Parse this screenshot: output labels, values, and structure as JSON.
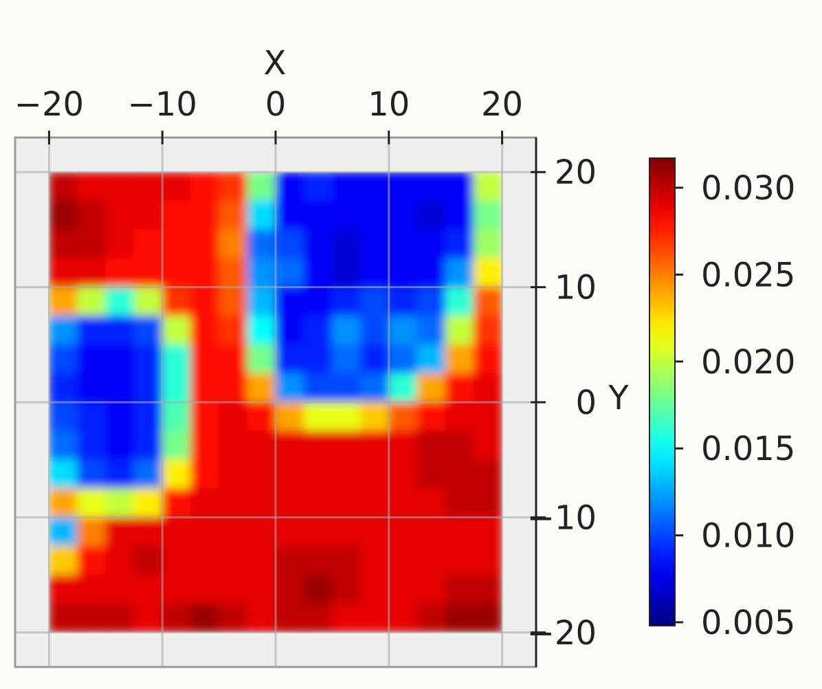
{
  "chart_data": {
    "type": "heatmap",
    "xlabel": "X",
    "ylabel": "Y",
    "colormap": "jet",
    "grid": true,
    "x": [
      -18.75,
      -16.25,
      -13.75,
      -11.25,
      -8.75,
      -6.25,
      -3.75,
      -1.25,
      1.25,
      3.75,
      6.25,
      8.75,
      11.25,
      13.75,
      16.25,
      18.75
    ],
    "y": [
      18.75,
      16.25,
      13.75,
      11.25,
      8.75,
      6.25,
      3.75,
      1.25,
      -1.25,
      -3.75,
      -6.25,
      -8.75,
      -11.25,
      -13.75,
      -16.25,
      -18.75
    ],
    "z": [
      [
        0.03,
        0.029,
        0.029,
        0.029,
        0.029,
        0.028,
        0.027,
        0.018,
        0.008,
        0.009,
        0.008,
        0.008,
        0.008,
        0.008,
        0.008,
        0.02
      ],
      [
        0.031,
        0.03,
        0.029,
        0.029,
        0.028,
        0.028,
        0.026,
        0.014,
        0.008,
        0.008,
        0.008,
        0.008,
        0.008,
        0.007,
        0.008,
        0.018
      ],
      [
        0.03,
        0.03,
        0.029,
        0.028,
        0.028,
        0.028,
        0.025,
        0.011,
        0.01,
        0.008,
        0.007,
        0.008,
        0.008,
        0.008,
        0.009,
        0.019
      ],
      [
        0.029,
        0.029,
        0.028,
        0.028,
        0.028,
        0.028,
        0.026,
        0.012,
        0.011,
        0.008,
        0.007,
        0.008,
        0.008,
        0.008,
        0.012,
        0.022
      ],
      [
        0.024,
        0.02,
        0.016,
        0.02,
        0.027,
        0.028,
        0.026,
        0.013,
        0.008,
        0.008,
        0.009,
        0.01,
        0.009,
        0.01,
        0.016,
        0.026
      ],
      [
        0.012,
        0.009,
        0.009,
        0.01,
        0.02,
        0.028,
        0.027,
        0.015,
        0.008,
        0.009,
        0.012,
        0.01,
        0.012,
        0.011,
        0.02,
        0.027
      ],
      [
        0.01,
        0.008,
        0.008,
        0.009,
        0.016,
        0.028,
        0.028,
        0.018,
        0.009,
        0.009,
        0.011,
        0.009,
        0.011,
        0.013,
        0.024,
        0.028
      ],
      [
        0.009,
        0.008,
        0.008,
        0.009,
        0.016,
        0.028,
        0.028,
        0.024,
        0.012,
        0.01,
        0.01,
        0.011,
        0.016,
        0.024,
        0.028,
        0.029
      ],
      [
        0.01,
        0.009,
        0.008,
        0.009,
        0.017,
        0.028,
        0.029,
        0.028,
        0.024,
        0.021,
        0.021,
        0.023,
        0.026,
        0.028,
        0.029,
        0.029
      ],
      [
        0.011,
        0.009,
        0.008,
        0.009,
        0.018,
        0.028,
        0.029,
        0.029,
        0.029,
        0.029,
        0.029,
        0.029,
        0.029,
        0.03,
        0.03,
        0.029
      ],
      [
        0.014,
        0.01,
        0.009,
        0.011,
        0.022,
        0.028,
        0.029,
        0.029,
        0.029,
        0.029,
        0.029,
        0.029,
        0.029,
        0.03,
        0.03,
        0.03
      ],
      [
        0.024,
        0.021,
        0.02,
        0.022,
        0.028,
        0.029,
        0.029,
        0.029,
        0.029,
        0.029,
        0.029,
        0.029,
        0.029,
        0.029,
        0.03,
        0.03
      ],
      [
        0.013,
        0.025,
        0.029,
        0.029,
        0.029,
        0.029,
        0.029,
        0.029,
        0.029,
        0.029,
        0.029,
        0.029,
        0.029,
        0.029,
        0.029,
        0.029
      ],
      [
        0.023,
        0.028,
        0.029,
        0.03,
        0.029,
        0.029,
        0.029,
        0.029,
        0.03,
        0.03,
        0.03,
        0.029,
        0.029,
        0.029,
        0.029,
        0.029
      ],
      [
        0.029,
        0.029,
        0.029,
        0.029,
        0.029,
        0.029,
        0.029,
        0.029,
        0.03,
        0.031,
        0.03,
        0.029,
        0.029,
        0.029,
        0.03,
        0.03
      ],
      [
        0.03,
        0.03,
        0.03,
        0.029,
        0.03,
        0.031,
        0.03,
        0.029,
        0.03,
        0.03,
        0.029,
        0.029,
        0.029,
        0.03,
        0.031,
        0.031
      ]
    ],
    "cell": 2.5,
    "xlim": [
      -23,
      23
    ],
    "ylim": [
      -23,
      23
    ],
    "xticks": [
      {
        "value": -20,
        "label": "−20"
      },
      {
        "value": -10,
        "label": "−10"
      },
      0,
      10,
      20
    ],
    "yticks": [
      {
        "value": -20,
        "label": "−20"
      },
      {
        "value": -10,
        "label": "−10"
      },
      0,
      10,
      20
    ],
    "clim": [
      0.0048,
      0.0317
    ],
    "cticks": [
      0.005,
      {
        "value": 0.01,
        "label": "0.010"
      },
      0.015,
      {
        "value": 0.02,
        "label": "0.020"
      },
      0.025,
      {
        "value": 0.03,
        "label": "0.030"
      }
    ]
  }
}
